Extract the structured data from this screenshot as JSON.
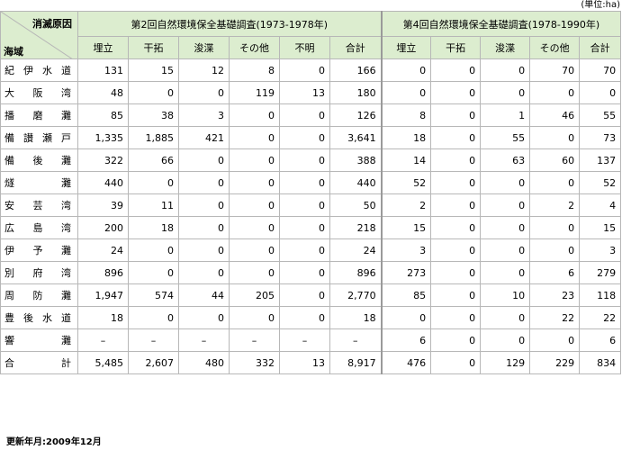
{
  "unit_note": "(単位:ha)",
  "corner": {
    "top": "消滅原因",
    "bottom": "海域"
  },
  "survey2": {
    "title": "第2回自然環境保全基礎調査(1973-1978年)",
    "cols": [
      "埋立",
      "干拓",
      "浚渫",
      "その他",
      "不明",
      "合計"
    ]
  },
  "survey4": {
    "title": "第4回自然環境保全基礎調査(1978-1990年)",
    "cols": [
      "埋立",
      "干拓",
      "浚渫",
      "その他",
      "合計"
    ]
  },
  "rows": [
    {
      "region": "紀伊水道",
      "s2": [
        "131",
        "15",
        "12",
        "8",
        "0",
        "166"
      ],
      "s4": [
        "0",
        "0",
        "0",
        "70",
        "70"
      ]
    },
    {
      "region": "大阪湾",
      "s2": [
        "48",
        "0",
        "0",
        "119",
        "13",
        "180"
      ],
      "s4": [
        "0",
        "0",
        "0",
        "0",
        "0"
      ]
    },
    {
      "region": "播磨灘",
      "s2": [
        "85",
        "38",
        "3",
        "0",
        "0",
        "126"
      ],
      "s4": [
        "8",
        "0",
        "1",
        "46",
        "55"
      ]
    },
    {
      "region": "備讃瀬戸",
      "s2": [
        "1,335",
        "1,885",
        "421",
        "0",
        "0",
        "3,641"
      ],
      "s4": [
        "18",
        "0",
        "55",
        "0",
        "73"
      ]
    },
    {
      "region": "備後灘",
      "s2": [
        "322",
        "66",
        "0",
        "0",
        "0",
        "388"
      ],
      "s4": [
        "14",
        "0",
        "63",
        "60",
        "137"
      ]
    },
    {
      "region": "燧灘",
      "s2": [
        "440",
        "0",
        "0",
        "0",
        "0",
        "440"
      ],
      "s4": [
        "52",
        "0",
        "0",
        "0",
        "52"
      ]
    },
    {
      "region": "安芸湾",
      "s2": [
        "39",
        "11",
        "0",
        "0",
        "0",
        "50"
      ],
      "s4": [
        "2",
        "0",
        "0",
        "2",
        "4"
      ]
    },
    {
      "region": "広島湾",
      "s2": [
        "200",
        "18",
        "0",
        "0",
        "0",
        "218"
      ],
      "s4": [
        "15",
        "0",
        "0",
        "0",
        "15"
      ]
    },
    {
      "region": "伊予灘",
      "s2": [
        "24",
        "0",
        "0",
        "0",
        "0",
        "24"
      ],
      "s4": [
        "3",
        "0",
        "0",
        "0",
        "3"
      ]
    },
    {
      "region": "別府湾",
      "s2": [
        "896",
        "0",
        "0",
        "0",
        "0",
        "896"
      ],
      "s4": [
        "273",
        "0",
        "0",
        "6",
        "279"
      ]
    },
    {
      "region": "周防灘",
      "s2": [
        "1,947",
        "574",
        "44",
        "205",
        "0",
        "2,770"
      ],
      "s4": [
        "85",
        "0",
        "10",
        "23",
        "118"
      ]
    },
    {
      "region": "豊後水道",
      "s2": [
        "18",
        "0",
        "0",
        "0",
        "0",
        "18"
      ],
      "s4": [
        "0",
        "0",
        "0",
        "22",
        "22"
      ]
    },
    {
      "region": "響灘",
      "s2": [
        "–",
        "–",
        "–",
        "–",
        "–",
        "–"
      ],
      "s4": [
        "6",
        "0",
        "0",
        "0",
        "6"
      ]
    },
    {
      "region": "合計",
      "s2": [
        "5,485",
        "2,607",
        "480",
        "332",
        "13",
        "8,917"
      ],
      "s4": [
        "476",
        "0",
        "129",
        "229",
        "834"
      ]
    }
  ],
  "footer": "更新年月:2009年12月",
  "colors": {
    "header_bg": "#dcedcf",
    "border": "#b7b7b7"
  }
}
